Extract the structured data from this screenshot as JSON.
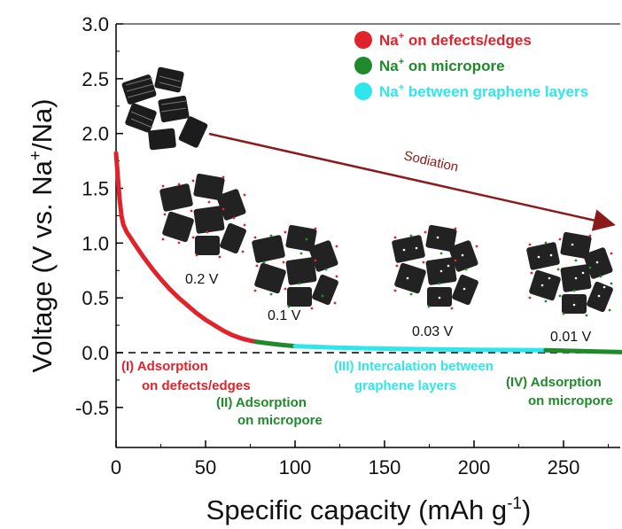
{
  "chart_data": {
    "type": "line",
    "xlabel": "Specific capacity (mAh g",
    "xlabel_sup": "-1",
    "xlabel_end": ")",
    "ylabel_prefix": "Voltage (V vs. Na",
    "ylabel_sup": "+",
    "ylabel_suffix": "/Na)",
    "xlim": [
      0,
      285
    ],
    "ylim": [
      -0.85,
      3.0
    ],
    "xticks": [
      0,
      50,
      100,
      150,
      200,
      250
    ],
    "yticks": [
      -0.5,
      0.0,
      0.5,
      1.0,
      1.5,
      2.0,
      2.5,
      3.0
    ],
    "ytick_labels": [
      "-0.5",
      "0.0",
      "0.5",
      "1.0",
      "1.5",
      "2.0",
      "2.5",
      "3.0"
    ],
    "series": [
      {
        "name": "Na+ on defects/edges",
        "color": "#e0232b",
        "x": [
          0,
          1,
          2,
          3,
          4,
          6,
          8,
          10,
          15,
          20,
          25,
          30,
          35,
          40,
          45,
          50,
          55,
          60,
          65,
          70,
          75,
          78
        ],
        "y": [
          1.82,
          1.6,
          1.4,
          1.25,
          1.17,
          1.1,
          1.05,
          1.0,
          0.88,
          0.77,
          0.67,
          0.58,
          0.5,
          0.43,
          0.36,
          0.3,
          0.25,
          0.2,
          0.16,
          0.13,
          0.11,
          0.1
        ]
      },
      {
        "name": "Na+ on micropore",
        "color": "#1e8a2a",
        "x": [
          78,
          85,
          92,
          100
        ],
        "y": [
          0.1,
          0.085,
          0.072,
          0.06
        ]
      },
      {
        "name": "Na+ between graphene layers",
        "color": "#2ee6ec",
        "x": [
          100,
          120,
          140,
          160,
          180,
          200,
          220,
          240
        ],
        "y": [
          0.06,
          0.048,
          0.04,
          0.034,
          0.03,
          0.027,
          0.024,
          0.022
        ]
      },
      {
        "name": "",
        "color": "#1e8a2a",
        "x": [
          240,
          255,
          270,
          285
        ],
        "y": [
          0.022,
          0.016,
          0.01,
          0.004
        ]
      }
    ],
    "legend": [
      {
        "ion": "Na",
        "sup": "+",
        "text": " on defects/edges",
        "color": "#e0232b"
      },
      {
        "ion": "Na",
        "sup": "+",
        "text": " on micropore",
        "color": "#1e8a2a"
      },
      {
        "ion": "Na",
        "sup": "+",
        "text": " between graphene layers",
        "color": "#2ee6ec"
      }
    ],
    "legend_position": "top-right",
    "annotations": {
      "region1": {
        "line1": "(I) Adsorption",
        "line2": "on defects/edges",
        "color": "#e0232b"
      },
      "region2": {
        "line1": "(II) Adsorption",
        "line2": "on micropore",
        "color": "#1e8a2a"
      },
      "region3": {
        "line1": "(III) Intercalation between",
        "line2": "graphene layers",
        "color": "#2ee6ec"
      },
      "region4": {
        "line1": "(IV) Adsorption",
        "line2": "on micropore",
        "color": "#1e8a2a"
      },
      "arrow_label": "Sodiation",
      "arrow_color": "#8b1a1a",
      "voltage_labels": [
        "0.2 V",
        "0.1 V",
        "0.03 V",
        "0.01 V"
      ]
    },
    "reference_line": {
      "y": 0.0,
      "style": "dashed"
    },
    "grid": false
  }
}
